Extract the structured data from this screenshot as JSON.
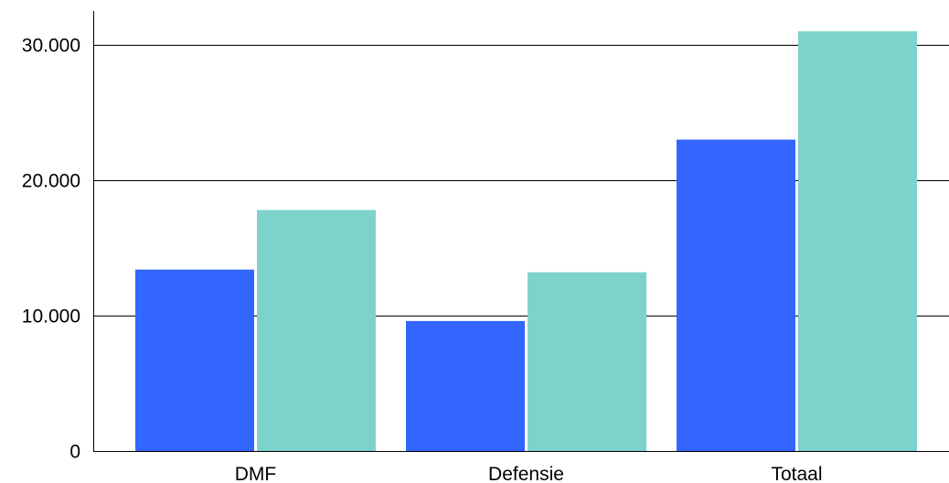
{
  "chart_data": {
    "type": "bar",
    "categories": [
      "DMF",
      "Defensie",
      "Totaal"
    ],
    "series": [
      {
        "values": [
          13400,
          9600,
          23000
        ],
        "color": "#3366ff"
      },
      {
        "values": [
          17800,
          13200,
          31000
        ],
        "color": "#7dd3cb"
      }
    ],
    "yticks": [
      0,
      10000,
      20000,
      30000
    ],
    "ytick_labels": [
      "0",
      "10.000",
      "20.000",
      "30.000"
    ],
    "ylim": [
      0,
      32500
    ],
    "grid": true
  }
}
